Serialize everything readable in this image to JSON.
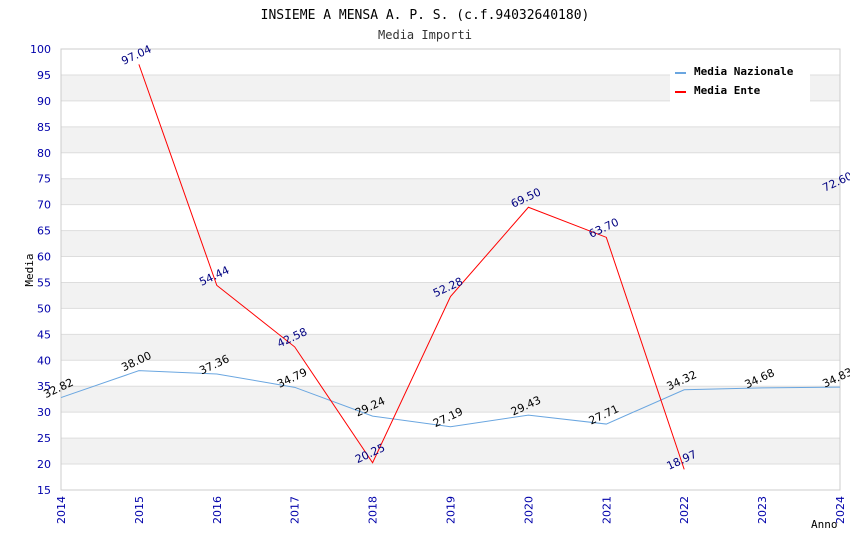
{
  "chart_data": {
    "type": "line",
    "title": "INSIEME A MENSA A. P. S. (c.f.94032640180)",
    "subtitle": "Media Importi",
    "xlabel": "Anno",
    "ylabel": "Media",
    "ylim": [
      15,
      100
    ],
    "ytick_step": 5,
    "grid": true,
    "legend_position": "top-right",
    "x": [
      "2014",
      "2015",
      "2016",
      "2017",
      "2018",
      "2019",
      "2020",
      "2021",
      "2022",
      "2023",
      "2024"
    ],
    "series": [
      {
        "name": "Media Nazionale",
        "color": "#6aa6e0",
        "values": [
          32.82,
          38.0,
          37.36,
          34.79,
          29.24,
          27.19,
          29.43,
          27.71,
          34.32,
          34.68,
          34.83
        ],
        "labels": [
          "32.82",
          "38.00",
          "37.36",
          "34.79",
          "29.24",
          "27.19",
          "29.43",
          "27.71",
          "34.32",
          "34.68",
          "34.83"
        ]
      },
      {
        "name": "Media Ente",
        "color": "#ff0000",
        "values": [
          null,
          97.04,
          54.44,
          42.58,
          20.25,
          52.28,
          69.5,
          63.7,
          18.97,
          null,
          72.6
        ],
        "labels": [
          null,
          "97.04",
          "54.44",
          "42.58",
          "20.25",
          "52.28",
          "69.50",
          "63.70",
          "18.97",
          null,
          "72.60"
        ]
      }
    ]
  }
}
